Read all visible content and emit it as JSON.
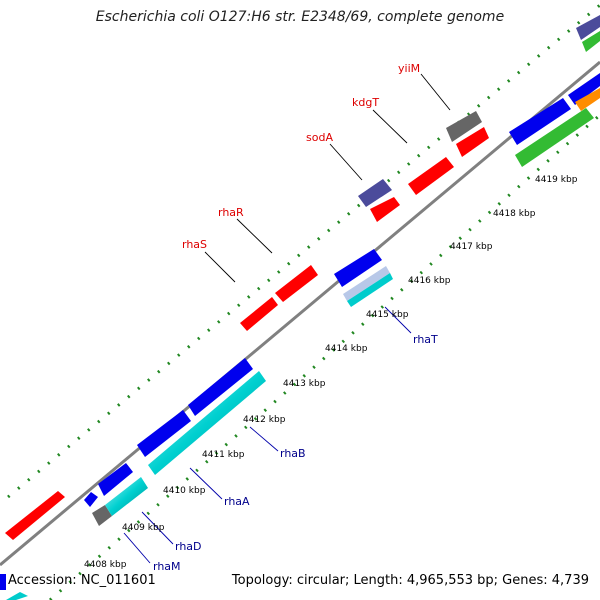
{
  "title": "Escherichia coli O127:H6 str. E2348/69, complete genome",
  "footer": {
    "accession": "Accession: NC_011601",
    "summary": "Topology: circular; Length: 4,965,553 bp; Genes: 4,739"
  },
  "colors": {
    "forward_label": "#dd0000",
    "reverse_label": "#00008b",
    "cds_forward": "#ff0000",
    "cds_reverse": "#0000ee",
    "rna": "#00cccc",
    "pseudo": "#666666",
    "other": "#4b4b9b",
    "backbone": "#808080",
    "ticks": "#228822"
  },
  "kbp_labels": [
    "4408 kbp",
    "4409 kbp",
    "4410 kbp",
    "4411 kbp",
    "4412 kbp",
    "4413 kbp",
    "4414 kbp",
    "4415 kbp",
    "4416 kbp",
    "4417 kbp",
    "4418 kbp",
    "4419 kbp"
  ],
  "forward_genes": [
    "rhaS",
    "rhaR",
    "sodA",
    "kdgT",
    "yiiM"
  ],
  "reverse_genes": [
    "rhaT",
    "rhaB",
    "rhaA",
    "rhaD",
    "rhaM"
  ]
}
